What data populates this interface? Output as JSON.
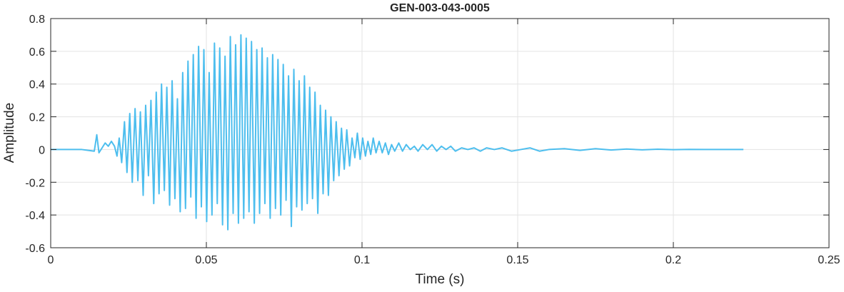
{
  "chart_data": {
    "type": "line",
    "title": "GEN-003-043-0005",
    "xlabel": "Time (s)",
    "ylabel": "Amplitude",
    "xlim": [
      0,
      0.25
    ],
    "ylim": [
      -0.6,
      0.8
    ],
    "xticks": [
      0,
      0.05,
      0.1,
      0.15,
      0.2,
      0.25
    ],
    "xtick_labels": [
      "0",
      "0.05",
      "0.1",
      "0.15",
      "0.2",
      "0.25"
    ],
    "yticks": [
      -0.6,
      -0.4,
      -0.2,
      0,
      0.2,
      0.4,
      0.6,
      0.8
    ],
    "ytick_labels": [
      "-0.6",
      "-0.4",
      "-0.2",
      "0",
      "0.2",
      "0.4",
      "0.6",
      "0.8"
    ],
    "grid": true,
    "legend": false,
    "series": [
      {
        "color": "#4DBEEE",
        "x": [
          0,
          0.005,
          0.01,
          0.014,
          0.0148,
          0.0155,
          0.0165,
          0.0175,
          0.0185,
          0.0195,
          0.0205,
          0.0213,
          0.022,
          0.0228,
          0.0237,
          0.0245,
          0.0254,
          0.0262,
          0.0271,
          0.028,
          0.0288,
          0.0297,
          0.0305,
          0.0314,
          0.0322,
          0.0331,
          0.0339,
          0.0348,
          0.0356,
          0.0365,
          0.0373,
          0.0382,
          0.039,
          0.0399,
          0.0407,
          0.0416,
          0.0424,
          0.0433,
          0.0441,
          0.045,
          0.0458,
          0.0467,
          0.0475,
          0.0484,
          0.0492,
          0.0501,
          0.0509,
          0.0518,
          0.0526,
          0.0535,
          0.0543,
          0.0552,
          0.056,
          0.0569,
          0.0577,
          0.0586,
          0.0594,
          0.0603,
          0.0611,
          0.062,
          0.0628,
          0.0637,
          0.0645,
          0.0654,
          0.0662,
          0.0671,
          0.0679,
          0.0688,
          0.0696,
          0.0705,
          0.0713,
          0.0722,
          0.073,
          0.0739,
          0.0747,
          0.0756,
          0.0764,
          0.0773,
          0.0781,
          0.079,
          0.0798,
          0.0807,
          0.0815,
          0.0824,
          0.0832,
          0.0841,
          0.0849,
          0.0858,
          0.0866,
          0.0875,
          0.0883,
          0.0892,
          0.09,
          0.0909,
          0.0917,
          0.0926,
          0.0934,
          0.0943,
          0.0951,
          0.096,
          0.0968,
          0.0977,
          0.0985,
          0.0994,
          0.1002,
          0.1011,
          0.1019,
          0.1028,
          0.1036,
          0.1045,
          0.1055,
          0.1065,
          0.1075,
          0.1085,
          0.1095,
          0.1105,
          0.1118,
          0.113,
          0.1142,
          0.1155,
          0.1168,
          0.118,
          0.1195,
          0.121,
          0.1225,
          0.124,
          0.1255,
          0.127,
          0.1285,
          0.13,
          0.132,
          0.134,
          0.136,
          0.138,
          0.14,
          0.1425,
          0.145,
          0.148,
          0.151,
          0.154,
          0.157,
          0.16,
          0.165,
          0.17,
          0.175,
          0.18,
          0.185,
          0.19,
          0.195,
          0.2,
          0.205,
          0.21,
          0.215,
          0.22,
          0.2225
        ],
        "y": [
          0.0,
          0.0,
          0.0,
          -0.01,
          0.09,
          -0.02,
          0.01,
          0.04,
          0.02,
          0.05,
          0.02,
          -0.04,
          0.07,
          -0.08,
          0.17,
          -0.14,
          0.22,
          -0.2,
          0.25,
          -0.19,
          0.23,
          -0.28,
          0.27,
          -0.16,
          0.3,
          -0.33,
          0.35,
          -0.27,
          0.4,
          -0.25,
          0.38,
          -0.34,
          0.42,
          -0.3,
          0.31,
          -0.38,
          0.47,
          -0.36,
          0.54,
          -0.29,
          0.58,
          -0.42,
          0.63,
          -0.35,
          0.61,
          -0.44,
          0.47,
          -0.4,
          0.65,
          -0.33,
          0.62,
          -0.46,
          0.57,
          -0.49,
          0.69,
          -0.39,
          0.64,
          -0.45,
          0.7,
          -0.42,
          0.68,
          -0.38,
          0.66,
          -0.45,
          0.61,
          -0.39,
          0.62,
          -0.33,
          0.56,
          -0.42,
          0.58,
          -0.36,
          0.55,
          -0.4,
          0.52,
          -0.31,
          0.45,
          -0.47,
          0.49,
          -0.35,
          0.42,
          -0.37,
          0.45,
          -0.33,
          0.38,
          -0.3,
          0.35,
          -0.39,
          0.27,
          -0.27,
          0.24,
          -0.28,
          0.2,
          -0.19,
          0.17,
          -0.16,
          0.13,
          -0.12,
          0.12,
          -0.1,
          0.07,
          -0.05,
          0.1,
          -0.06,
          0.07,
          -0.04,
          0.05,
          -0.03,
          0.07,
          -0.02,
          0.05,
          -0.02,
          0.04,
          -0.03,
          0.03,
          -0.01,
          0.04,
          -0.01,
          0.03,
          0.0,
          0.02,
          -0.01,
          0.03,
          0.0,
          0.03,
          -0.01,
          0.02,
          0.0,
          0.02,
          -0.01,
          0.01,
          0.0,
          0.01,
          -0.01,
          0.01,
          0.0,
          0.01,
          -0.01,
          0.0,
          0.01,
          -0.01,
          0.0,
          0.005,
          -0.005,
          0.005,
          -0.003,
          0.003,
          -0.002,
          0.002,
          -0.001,
          0.001,
          0.0,
          0.0,
          0.0,
          0.0
        ]
      }
    ]
  }
}
